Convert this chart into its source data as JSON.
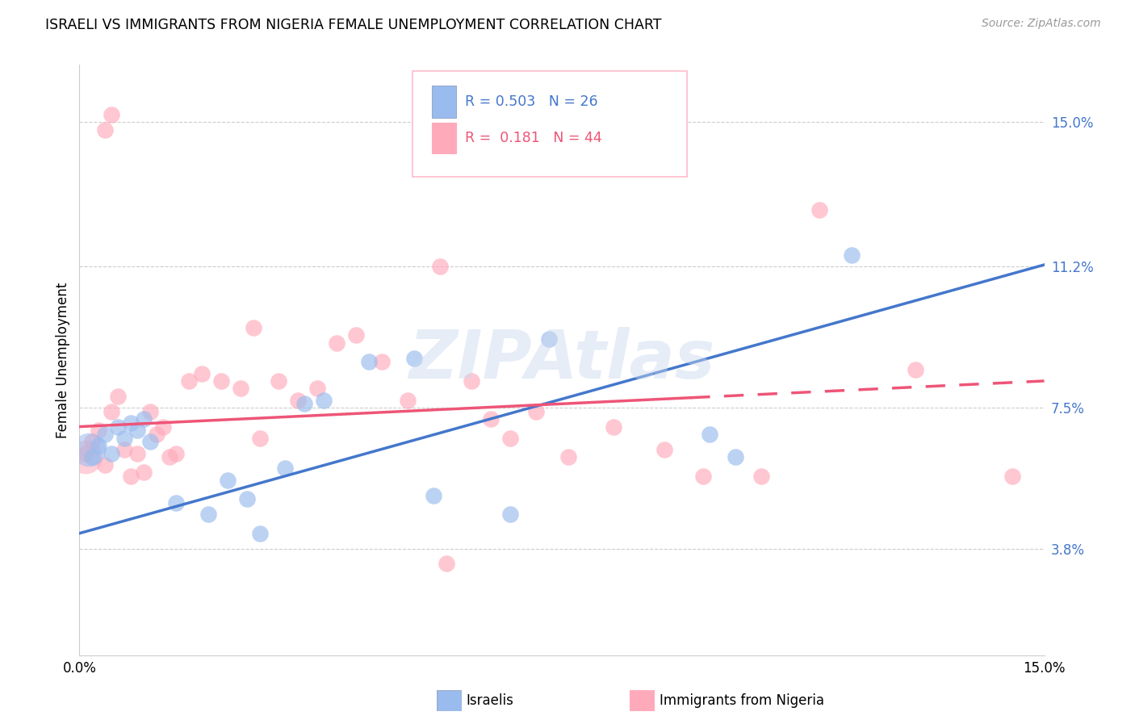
{
  "title": "ISRAELI VS IMMIGRANTS FROM NIGERIA FEMALE UNEMPLOYMENT CORRELATION CHART",
  "source": "Source: ZipAtlas.com",
  "ylabel_label": "Female Unemployment",
  "right_ytick_vals": [
    3.8,
    7.5,
    11.2,
    15.0
  ],
  "right_ytick_labels": [
    "3.8%",
    "7.5%",
    "11.2%",
    "15.0%"
  ],
  "xmin": 0.0,
  "xmax": 15.0,
  "ymin": 1.0,
  "ymax": 16.5,
  "blue_color": "#99BBEE",
  "pink_color": "#FFAABB",
  "blue_line_color": "#4477CC",
  "pink_line_color": "#EE5577",
  "watermark": "ZIPAtlas",
  "israelis_x": [
    0.2,
    0.3,
    0.4,
    0.5,
    0.6,
    0.7,
    0.8,
    0.9,
    1.0,
    1.1,
    1.5,
    2.0,
    2.3,
    2.6,
    3.2,
    3.8,
    4.5,
    5.5,
    6.7,
    7.3,
    9.8,
    10.2,
    12.0,
    5.2,
    3.5,
    2.8
  ],
  "israelis_y": [
    6.2,
    6.5,
    6.8,
    6.3,
    7.0,
    6.7,
    7.1,
    6.9,
    7.2,
    6.6,
    5.0,
    4.7,
    5.6,
    5.1,
    5.9,
    7.7,
    8.7,
    5.2,
    4.7,
    9.3,
    6.8,
    6.2,
    11.5,
    8.8,
    7.6,
    4.2
  ],
  "nigeria_x": [
    0.1,
    0.2,
    0.3,
    0.4,
    0.5,
    0.6,
    0.7,
    0.8,
    0.9,
    1.0,
    1.1,
    1.2,
    1.3,
    1.4,
    1.5,
    1.7,
    1.9,
    2.2,
    2.5,
    2.8,
    3.1,
    3.4,
    3.7,
    4.0,
    4.3,
    4.7,
    5.1,
    5.6,
    6.1,
    6.4,
    6.7,
    7.1,
    7.6,
    8.3,
    9.1,
    9.7,
    10.6,
    11.5,
    13.0,
    14.5,
    0.4,
    0.5,
    2.7,
    5.7
  ],
  "nigeria_y": [
    6.3,
    6.6,
    6.9,
    6.0,
    7.4,
    7.8,
    6.4,
    5.7,
    6.3,
    5.8,
    7.4,
    6.8,
    7.0,
    6.2,
    6.3,
    8.2,
    8.4,
    8.2,
    8.0,
    6.7,
    8.2,
    7.7,
    8.0,
    9.2,
    9.4,
    8.7,
    7.7,
    11.2,
    8.2,
    7.2,
    6.7,
    7.4,
    6.2,
    7.0,
    6.4,
    5.7,
    5.7,
    12.7,
    8.5,
    5.7,
    14.8,
    15.2,
    9.6,
    3.4
  ],
  "blue_intercept": 4.2,
  "blue_slope": 0.47,
  "pink_intercept": 7.0,
  "pink_slope": 0.08
}
